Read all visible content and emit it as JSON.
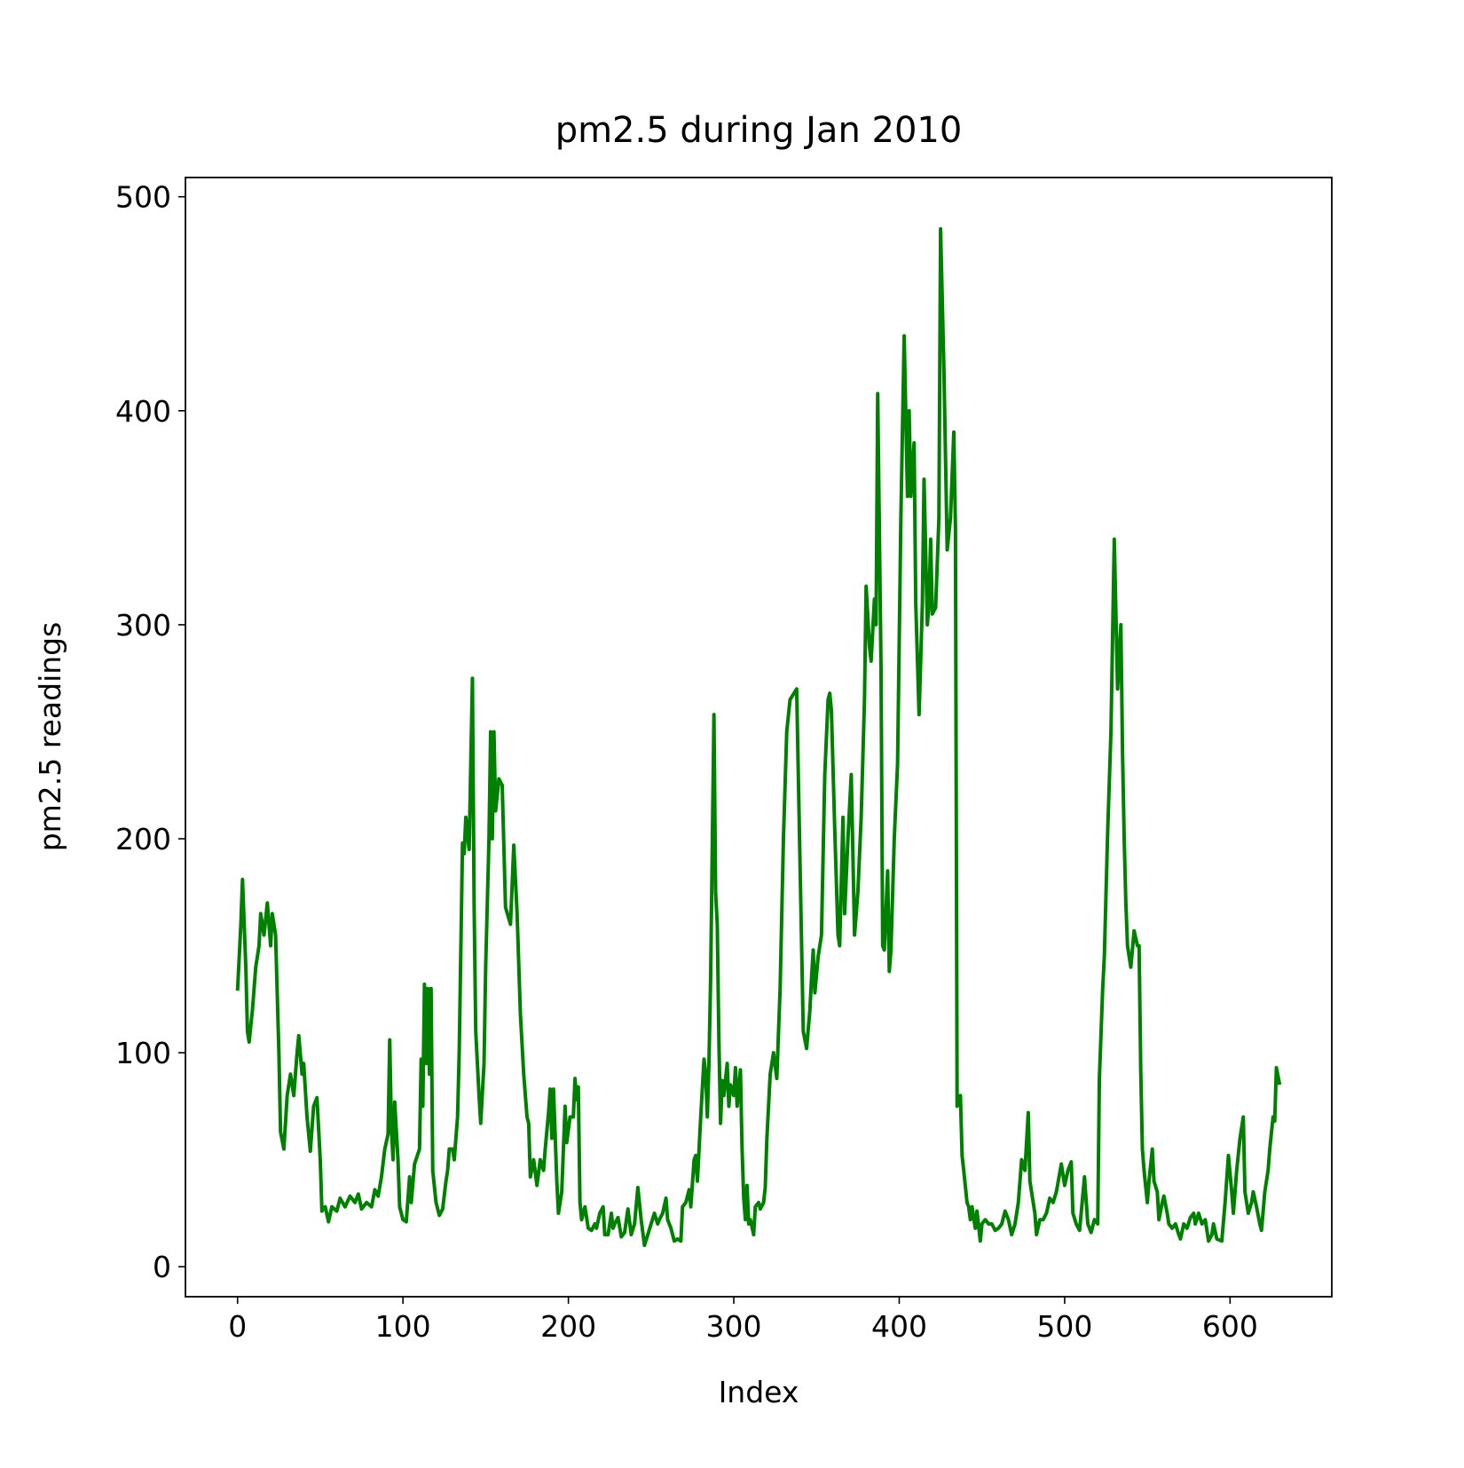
{
  "chart_data": {
    "type": "line",
    "title": "pm2.5 during Jan 2010",
    "x_label": "Index",
    "y_label": "pm2.5 readings",
    "color": "#008000",
    "xlim": [
      -31.5,
      661.5
    ],
    "ylim": [
      -14,
      509
    ],
    "xticks": [
      0,
      100,
      200,
      300,
      400,
      500,
      600
    ],
    "yticks": [
      0,
      100,
      200,
      300,
      400,
      500
    ],
    "grid": false,
    "x": [
      0,
      2,
      3,
      5,
      6,
      7,
      9,
      11,
      13,
      14,
      16,
      18,
      20,
      21,
      23,
      25,
      26,
      28,
      30,
      32,
      34,
      36,
      37,
      39,
      40,
      42,
      44,
      46,
      48,
      50,
      51,
      53,
      55,
      57,
      60,
      62,
      65,
      68,
      71,
      73,
      75,
      78,
      81,
      83,
      85,
      87,
      89,
      91,
      92,
      93,
      94,
      95,
      97,
      98,
      100,
      102,
      104,
      105,
      107,
      110,
      111,
      112,
      113,
      114,
      115,
      116,
      117,
      118,
      120,
      122,
      124,
      126,
      127,
      128,
      130,
      131,
      133,
      134,
      136,
      137,
      138,
      140,
      142,
      143,
      144,
      146,
      147,
      149,
      150,
      152,
      153,
      154,
      155,
      156,
      158,
      160,
      162,
      165,
      167,
      169,
      171,
      173,
      175,
      176,
      177,
      179,
      181,
      183,
      185,
      186,
      188,
      189,
      190,
      191,
      193,
      194,
      196,
      198,
      199,
      201,
      203,
      204,
      205,
      206,
      207,
      208,
      210,
      212,
      214,
      216,
      217,
      219,
      221,
      222,
      224,
      226,
      227,
      228,
      230,
      232,
      234,
      236,
      238,
      240,
      242,
      244,
      246,
      248,
      250,
      252,
      254,
      255,
      257,
      259,
      260,
      262,
      264,
      266,
      268,
      269,
      271,
      273,
      274,
      276,
      277,
      278,
      280,
      282,
      283,
      284,
      285,
      286,
      288,
      289,
      290,
      291,
      292,
      293,
      294,
      296,
      297,
      298,
      300,
      301,
      302,
      304,
      305,
      306,
      307,
      308,
      309,
      310,
      312,
      313,
      315,
      316,
      318,
      319,
      320,
      322,
      324,
      326,
      328,
      330,
      332,
      334,
      338,
      339,
      341,
      342,
      344,
      346,
      347,
      348,
      349,
      351,
      353,
      355,
      357,
      358,
      359,
      361,
      363,
      364,
      366,
      367,
      369,
      371,
      373,
      375,
      377,
      379,
      380,
      382,
      383,
      385,
      386,
      387,
      389,
      390,
      391,
      393,
      394,
      395,
      397,
      399,
      401,
      403,
      405,
      406,
      407,
      409,
      410,
      412,
      414,
      415,
      417,
      418,
      419,
      420,
      422,
      424,
      425,
      427,
      429,
      431,
      433,
      434,
      435,
      437,
      438,
      439,
      441,
      442,
      443,
      444,
      446,
      447,
      449,
      450,
      452,
      454,
      456,
      458,
      460,
      462,
      464,
      466,
      468,
      470,
      472,
      474,
      476,
      478,
      479,
      481,
      482,
      483,
      485,
      487,
      489,
      491,
      493,
      495,
      498,
      500,
      502,
      504,
      505,
      507,
      509,
      510,
      512,
      514,
      516,
      518,
      520,
      521,
      523,
      524,
      526,
      528,
      530,
      532,
      534,
      535,
      536,
      537,
      538,
      540,
      542,
      544,
      545,
      546,
      547,
      548,
      550,
      551,
      553,
      554,
      556,
      557,
      559,
      560,
      562,
      563,
      565,
      567,
      569,
      570,
      572,
      574,
      576,
      578,
      579,
      581,
      583,
      585,
      587,
      589,
      590,
      592,
      595,
      597,
      599,
      601,
      602,
      604,
      606,
      608,
      609,
      611,
      613,
      614,
      616,
      618,
      619,
      621,
      623,
      624,
      626,
      627,
      628,
      630
    ],
    "values": [
      129,
      160,
      181,
      140,
      110,
      105,
      120,
      140,
      150,
      165,
      155,
      170,
      150,
      165,
      155,
      100,
      63,
      55,
      80,
      90,
      80,
      100,
      108,
      90,
      95,
      70,
      54,
      75,
      79,
      50,
      26,
      28,
      21,
      28,
      26,
      32,
      28,
      33,
      30,
      34,
      27,
      30,
      28,
      36,
      33,
      42,
      55,
      62,
      106,
      65,
      50,
      77,
      50,
      28,
      22,
      21,
      42,
      30,
      48,
      55,
      97,
      75,
      132,
      95,
      130,
      90,
      130,
      45,
      30,
      24,
      27,
      40,
      45,
      55,
      55,
      50,
      70,
      100,
      198,
      193,
      210,
      195,
      275,
      170,
      110,
      80,
      67,
      95,
      140,
      200,
      250,
      200,
      250,
      213,
      228,
      225,
      168,
      160,
      197,
      165,
      118,
      90,
      70,
      67,
      42,
      50,
      38,
      50,
      45,
      55,
      72,
      83,
      60,
      83,
      40,
      25,
      35,
      75,
      58,
      70,
      70,
      88,
      78,
      84,
      30,
      22,
      28,
      18,
      17,
      20,
      18,
      25,
      28,
      15,
      15,
      25,
      18,
      20,
      23,
      14,
      16,
      27,
      15,
      20,
      37,
      22,
      10,
      15,
      20,
      25,
      20,
      22,
      25,
      32,
      22,
      18,
      12,
      13,
      12,
      28,
      30,
      36,
      28,
      50,
      52,
      40,
      70,
      97,
      90,
      70,
      96,
      135,
      258,
      175,
      160,
      105,
      67,
      87,
      80,
      95,
      75,
      85,
      80,
      93,
      75,
      92,
      55,
      32,
      22,
      38,
      20,
      22,
      15,
      28,
      30,
      27,
      30,
      37,
      60,
      90,
      100,
      88,
      130,
      200,
      250,
      265,
      270,
      230,
      150,
      110,
      102,
      120,
      135,
      148,
      128,
      145,
      155,
      230,
      265,
      268,
      260,
      205,
      155,
      150,
      210,
      165,
      200,
      230,
      155,
      175,
      210,
      265,
      318,
      290,
      283,
      312,
      300,
      408,
      280,
      150,
      148,
      185,
      138,
      148,
      200,
      235,
      350,
      435,
      360,
      400,
      360,
      385,
      310,
      258,
      310,
      368,
      300,
      310,
      340,
      305,
      308,
      350,
      485,
      420,
      335,
      350,
      390,
      345,
      75,
      80,
      52,
      45,
      30,
      28,
      22,
      28,
      18,
      26,
      12,
      20,
      22,
      20,
      20,
      17,
      18,
      20,
      26,
      22,
      15,
      20,
      30,
      50,
      45,
      72,
      40,
      30,
      25,
      15,
      22,
      22,
      25,
      32,
      30,
      35,
      48,
      38,
      45,
      49,
      25,
      20,
      17,
      25,
      42,
      20,
      16,
      22,
      20,
      88,
      130,
      145,
      203,
      250,
      340,
      270,
      300,
      240,
      200,
      170,
      150,
      140,
      157,
      150,
      150,
      92,
      55,
      45,
      30,
      40,
      55,
      40,
      35,
      22,
      30,
      33,
      25,
      20,
      18,
      20,
      15,
      13,
      20,
      18,
      23,
      25,
      20,
      25,
      20,
      22,
      12,
      15,
      20,
      13,
      12,
      30,
      52,
      35,
      25,
      45,
      60,
      70,
      35,
      25,
      30,
      35,
      28,
      20,
      17,
      35,
      45,
      55,
      70,
      68,
      93,
      85
    ]
  }
}
